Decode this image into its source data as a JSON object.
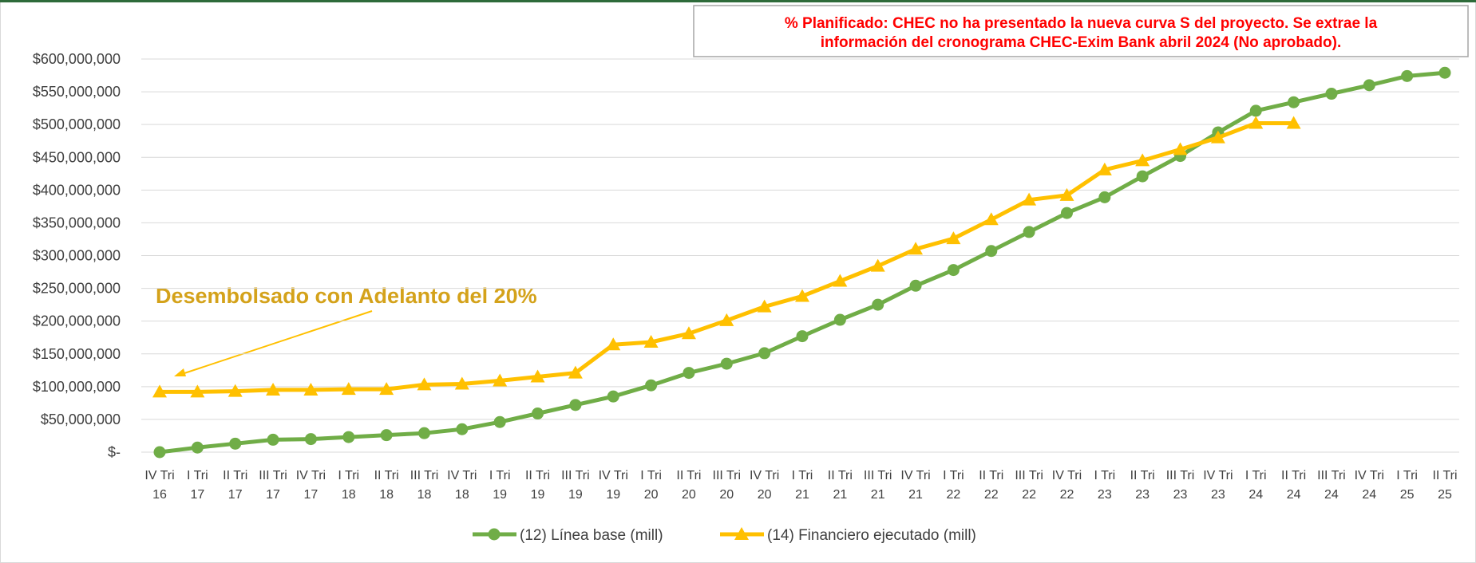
{
  "chart_data": {
    "type": "line",
    "note": "% Planificado: CHEC no ha presentado la nueva curva S del proyecto. Se extrae la información del cronograma CHEC-Exim Bank abril 2024 (No aprobado).",
    "annotation": "Desembolsado con Adelanto del 20%",
    "categories": [
      "IV Tri 16",
      "I Tri 17",
      "II Tri 17",
      "III Tri 17",
      "IV Tri 17",
      "I Tri 18",
      "II Tri 18",
      "III Tri 18",
      "IV Tri 18",
      "I Tri 19",
      "II Tri 19",
      "III Tri 19",
      "IV Tri 19",
      "I Tri 20",
      "II Tri 20",
      "III Tri 20",
      "IV Tri 20",
      "I Tri 21",
      "II Tri 21",
      "III Tri 21",
      "IV Tri 21",
      "I Tri 22",
      "II Tri 22",
      "III Tri 22",
      "IV Tri 22",
      "I Tri 23",
      "II Tri 23",
      "III Tri 23",
      "IV Tri 23",
      "I Tri 24",
      "II Tri 24",
      "III Tri 24",
      "IV Tri 24",
      "I Tri 25",
      "II Tri 25"
    ],
    "series": [
      {
        "name": "(12) Línea base (mill)",
        "color": "#70ad47",
        "marker": "circle",
        "values": [
          0,
          7000000,
          13000000,
          19000000,
          20000000,
          23000000,
          26000000,
          29000000,
          35000000,
          46000000,
          59000000,
          72000000,
          85000000,
          102000000,
          121000000,
          135000000,
          151000000,
          177000000,
          202000000,
          225000000,
          254000000,
          278000000,
          307000000,
          336000000,
          365000000,
          389000000,
          421000000,
          452000000,
          488000000,
          521000000,
          534000000,
          547000000,
          560000000,
          574000000,
          579000000
        ]
      },
      {
        "name": "(14) Financiero ejecutado (mill)",
        "color": "#ffc000",
        "marker": "triangle",
        "values": [
          92000000,
          92000000,
          93000000,
          95000000,
          95000000,
          96000000,
          96000000,
          103000000,
          104000000,
          109000000,
          115000000,
          121000000,
          164000000,
          168000000,
          181000000,
          201000000,
          222000000,
          238000000,
          261000000,
          284000000,
          310000000,
          326000000,
          355000000,
          385000000,
          392000000,
          431000000,
          445000000,
          462000000,
          480000000,
          502000000,
          502000000,
          null,
          null,
          null,
          null
        ]
      }
    ],
    "ylim": [
      0,
      600000000
    ],
    "yticks": [
      {
        "value": 0,
        "label": "$-"
      },
      {
        "value": 50000000,
        "label": "$50,000,000"
      },
      {
        "value": 100000000,
        "label": "$100,000,000"
      },
      {
        "value": 150000000,
        "label": "$150,000,000"
      },
      {
        "value": 200000000,
        "label": "$200,000,000"
      },
      {
        "value": 250000000,
        "label": "$250,000,000"
      },
      {
        "value": 300000000,
        "label": "$300,000,000"
      },
      {
        "value": 350000000,
        "label": "$350,000,000"
      },
      {
        "value": 400000000,
        "label": "$400,000,000"
      },
      {
        "value": 450000000,
        "label": "$450,000,000"
      },
      {
        "value": 500000000,
        "label": "$500,000,000"
      },
      {
        "value": 550000000,
        "label": "$550,000,000"
      },
      {
        "value": 600000000,
        "label": "$600,000,000"
      }
    ],
    "grid": true,
    "legend": "bottom"
  }
}
